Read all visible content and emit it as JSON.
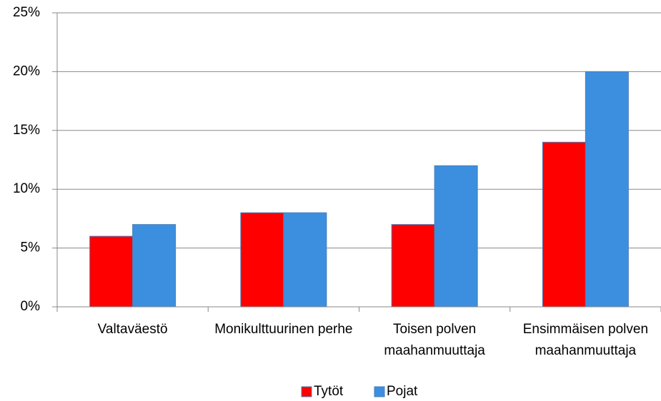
{
  "chart_data": {
    "type": "bar",
    "categories": [
      "Valtaväestö",
      "Monikulttuurinen perhe",
      "Toisen polven maahanmuuttaja",
      "Ensimmäisen polven maahanmuuttaja"
    ],
    "series": [
      {
        "name": "Tytöt",
        "color": "#ff0000",
        "values": [
          6,
          8,
          7,
          14
        ]
      },
      {
        "name": "Pojat",
        "color": "#3c8fdf",
        "values": [
          7,
          8,
          12,
          20
        ]
      }
    ],
    "ylim": [
      0,
      25
    ],
    "yticks": [
      {
        "value": 0,
        "label": "0%"
      },
      {
        "value": 5,
        "label": "5%"
      },
      {
        "value": 10,
        "label": "10%"
      },
      {
        "value": 15,
        "label": "15%"
      },
      {
        "value": 20,
        "label": "20%"
      },
      {
        "value": 25,
        "label": "25%"
      }
    ],
    "grid": true,
    "legend": "bottom"
  }
}
